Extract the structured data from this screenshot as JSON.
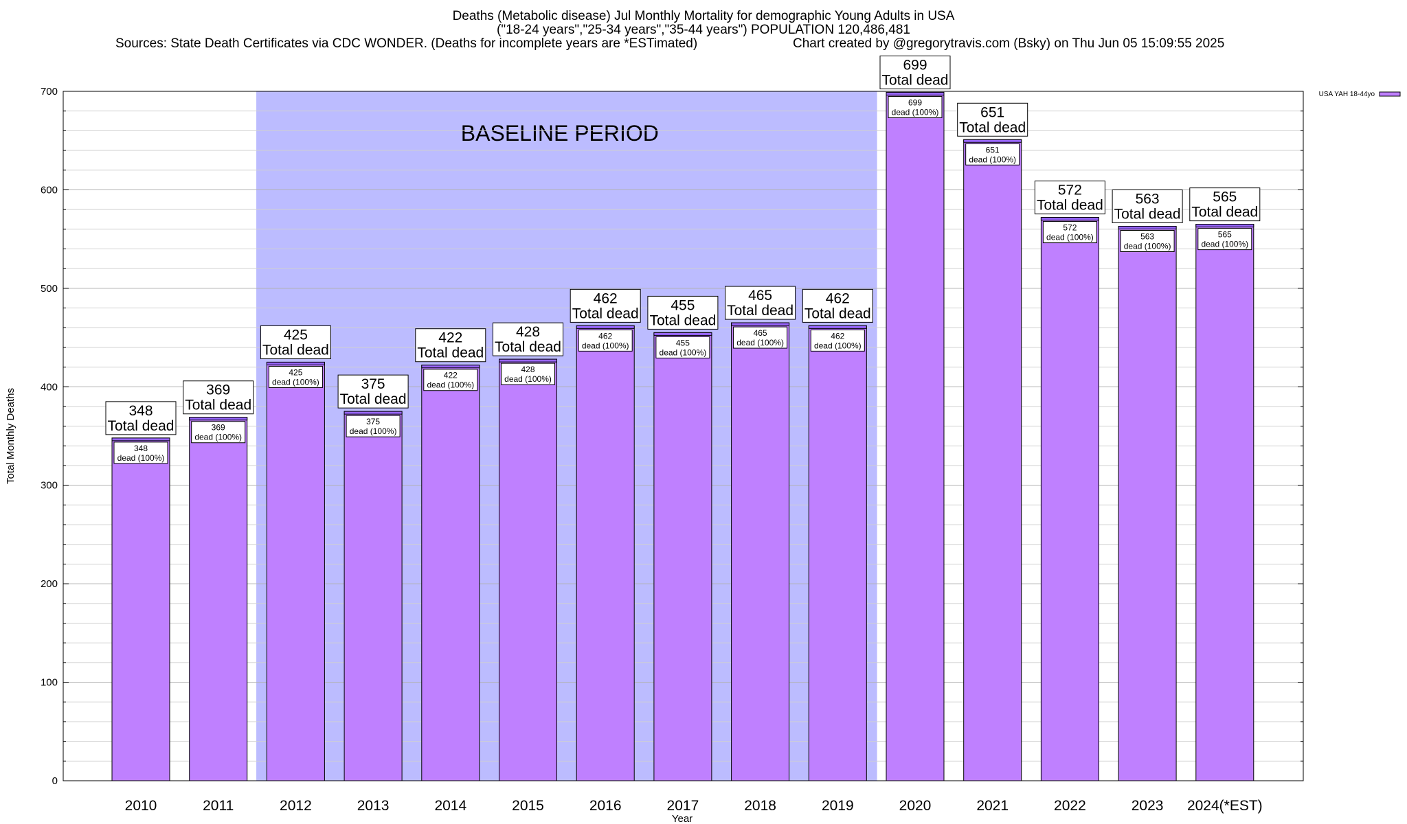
{
  "header": {
    "title_line1": "Deaths (Metabolic disease) Jul Monthly Mortality for demographic Young Adults in USA",
    "title_line2": "(\"18-24 years\",\"25-34 years\",\"35-44 years\") POPULATION 120,486,481",
    "sources": "Sources: State Death Certificates via CDC WONDER. (Deaths for incomplete years are *ESTimated)",
    "credit": "Chart created by @gregorytravis.com (Bsky) on Thu Jun 05 15:09:55 2025"
  },
  "chart_data": {
    "type": "bar",
    "categories": [
      "2010",
      "2011",
      "2012",
      "2013",
      "2014",
      "2015",
      "2016",
      "2017",
      "2018",
      "2019",
      "2020",
      "2021",
      "2022",
      "2023",
      "2024(*EST)"
    ],
    "series": [
      {
        "name": "USA YAH 18-44yo",
        "values": [
          348,
          369,
          425,
          375,
          422,
          428,
          462,
          455,
          465,
          462,
          699,
          651,
          572,
          563,
          565
        ]
      }
    ],
    "total_label": "Total dead",
    "inner_label_suffix": "dead (100%)",
    "xlabel": "Year",
    "ylabel": "Total Monthly Deaths",
    "ylim": [
      0,
      700
    ],
    "yticks": [
      0,
      100,
      200,
      300,
      400,
      500,
      600,
      700
    ],
    "grid": true,
    "legend_position": "top-right",
    "baseline": {
      "label": "BASELINE PERIOD",
      "from": "2012",
      "to": "2019"
    },
    "colors": {
      "bar": "#bf80ff",
      "bar_top": "#9966ff",
      "baseline": "#bcbcff"
    }
  }
}
